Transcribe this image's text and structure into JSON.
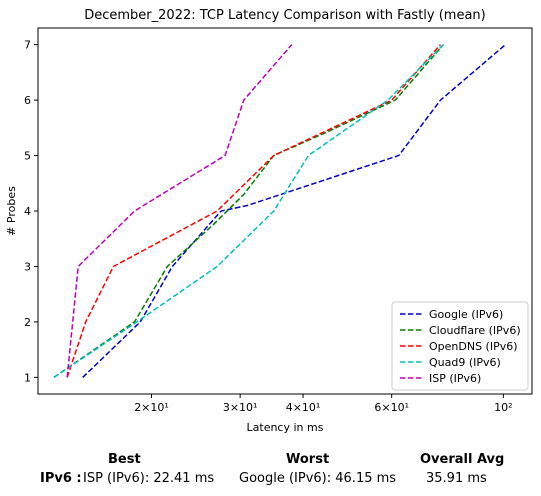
{
  "chart_data": {
    "type": "line",
    "title": "December_2022: TCP Latency Comparison with Fastly (mean)",
    "xlabel": "Latency in ms",
    "ylabel": "# Probes",
    "x_scale": "log",
    "xlim": [
      11.9,
      114
    ],
    "ylim": [
      0.7,
      7.3
    ],
    "x_ticks": [
      {
        "value": 20,
        "label": "2×10¹"
      },
      {
        "value": 30,
        "label": "3×10¹"
      },
      {
        "value": 40,
        "label": "4×10¹"
      },
      {
        "value": 60,
        "label": "6×10¹"
      },
      {
        "value": 100,
        "label": "10²"
      }
    ],
    "y_ticks": [
      1,
      2,
      3,
      4,
      5,
      6,
      7
    ],
    "grid": false,
    "legend_position": "lower-right",
    "series": [
      {
        "name": "Google (IPv6)",
        "color": "#0000cc",
        "points": [
          [
            14.6,
            1
          ],
          [
            19.0,
            2
          ],
          [
            22.0,
            3
          ],
          [
            27.5,
            4
          ],
          [
            31.0,
            4.1
          ],
          [
            62.0,
            5
          ],
          [
            75.0,
            6
          ],
          [
            101.0,
            7
          ]
        ]
      },
      {
        "name": "Cloudflare (IPv6)",
        "color": "#008000",
        "points": [
          [
            12.8,
            1
          ],
          [
            18.5,
            2
          ],
          [
            21.5,
            3
          ],
          [
            26.5,
            3.75
          ],
          [
            30.5,
            4.3
          ],
          [
            35.0,
            5
          ],
          [
            44.0,
            5.4
          ],
          [
            61.0,
            6
          ],
          [
            76.0,
            7
          ]
        ]
      },
      {
        "name": "OpenDNS (IPv6)",
        "color": "#ff0000",
        "points": [
          [
            13.6,
            1
          ],
          [
            14.8,
            2
          ],
          [
            16.8,
            3
          ],
          [
            27.0,
            4
          ],
          [
            35.0,
            5
          ],
          [
            60.0,
            6
          ],
          [
            75.0,
            7
          ]
        ]
      },
      {
        "name": "Quad9 (IPv6)",
        "color": "#00bfbf",
        "points": [
          [
            12.8,
            1
          ],
          [
            18.7,
            2
          ],
          [
            27.0,
            3
          ],
          [
            35.0,
            4
          ],
          [
            41.0,
            5
          ],
          [
            59.0,
            6
          ],
          [
            76.0,
            7
          ]
        ]
      },
      {
        "name": "ISP (IPv6)",
        "color": "#bf00bf",
        "points": [
          [
            13.6,
            1
          ],
          [
            14.3,
            3
          ],
          [
            18.5,
            4
          ],
          [
            28.0,
            5
          ],
          [
            30.5,
            6
          ],
          [
            38.0,
            7
          ]
        ]
      }
    ]
  },
  "summary": {
    "best_header": "Best",
    "worst_header": "Worst",
    "avg_header": "Overall Avg",
    "row_label": "IPv6 :",
    "best_value": "ISP (IPv6): 22.41 ms",
    "worst_value": "Google (IPv6): 46.15 ms",
    "avg_value": "35.91 ms"
  }
}
